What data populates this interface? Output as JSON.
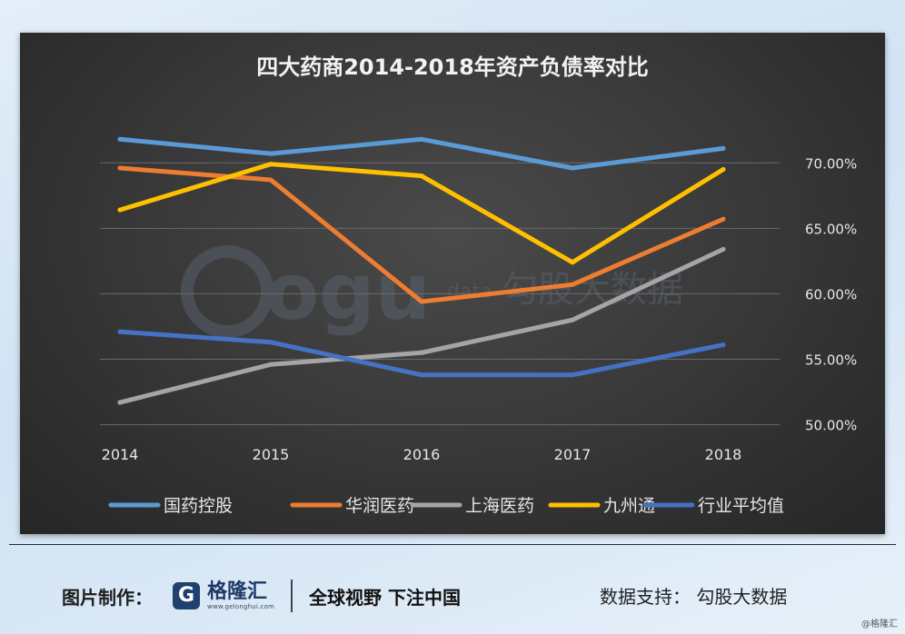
{
  "chart_data": {
    "type": "line",
    "title": "四大药商2014-2018年资产负债率对比",
    "categories": [
      "2014",
      "2015",
      "2016",
      "2017",
      "2018"
    ],
    "y_axis": {
      "min": 0.49,
      "max": 0.73,
      "ticks": [
        0.5,
        0.55,
        0.6,
        0.65,
        0.7
      ],
      "tick_labels": [
        "50.00%",
        "55.00%",
        "60.00%",
        "65.00%",
        "70.00%"
      ],
      "position": "right"
    },
    "grid": true,
    "legend_position": "bottom",
    "series": [
      {
        "name": "国药控股",
        "color": "#5b9bd5",
        "values": [
          0.718,
          0.707,
          0.718,
          0.696,
          0.711
        ]
      },
      {
        "name": "华润医药",
        "color": "#ed7d31",
        "values": [
          0.696,
          0.687,
          0.594,
          0.607,
          0.657
        ]
      },
      {
        "name": "上海医药",
        "color": "#a5a5a5",
        "values": [
          0.517,
          0.546,
          0.555,
          0.58,
          0.634
        ]
      },
      {
        "name": "九州通",
        "color": "#ffc000",
        "values": [
          0.664,
          0.699,
          0.69,
          0.624,
          0.695
        ]
      },
      {
        "name": "行业平均值",
        "color": "#4472c4",
        "values": [
          0.571,
          0.563,
          0.538,
          0.538,
          0.561
        ]
      }
    ],
    "watermark": "Gogudata 勾股大数据"
  },
  "footer": {
    "made_by_label": "图片制作：",
    "brand_logo_letter": "G",
    "brand_name": "格隆汇",
    "brand_url": "www.gelonghui.com",
    "slogan": "全球视野 下注中国",
    "data_support": "数据支持：  勾股大数据",
    "credit": "@格隆汇"
  }
}
